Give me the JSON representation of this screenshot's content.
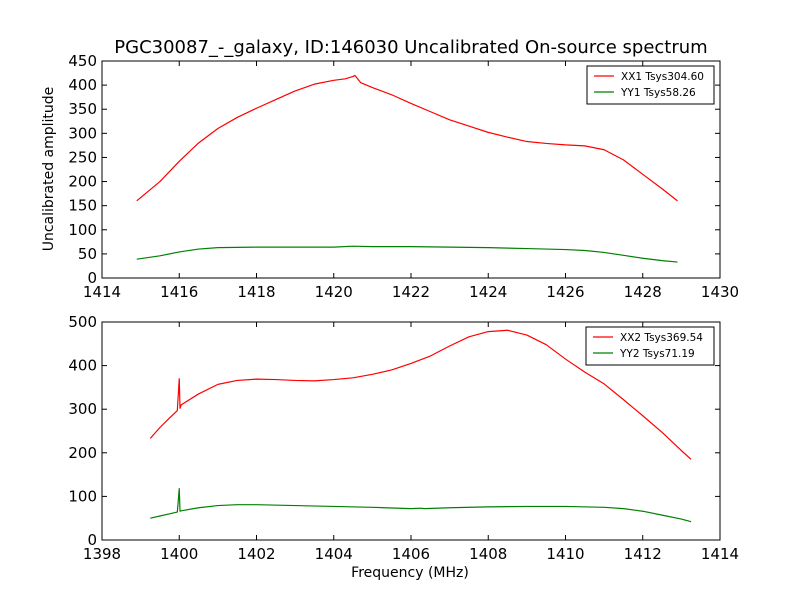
{
  "title": "PGC30087_-_galaxy, ID:146030 Uncalibrated On-source spectrum",
  "shared_ylabel": "Uncalibrated amplitude",
  "shared_xlabel": "Frequency (MHz)",
  "colors": {
    "red": "#ff0000",
    "green": "#008000",
    "axes": "#000000",
    "background": "#ffffff"
  },
  "chart_data": [
    {
      "type": "line",
      "panel": "top",
      "xlim": [
        1414,
        1430
      ],
      "ylim": [
        0,
        450
      ],
      "xticks": [
        1414,
        1416,
        1418,
        1420,
        1422,
        1424,
        1426,
        1428,
        1430
      ],
      "yticks": [
        0,
        50,
        100,
        150,
        200,
        250,
        300,
        350,
        400,
        450
      ],
      "xlabel": "",
      "ylabel": "Uncalibrated amplitude",
      "legend_position": "top-right",
      "series": [
        {
          "name": "XX1 Tsys304.60",
          "color": "#ff0000",
          "x": [
            1414.9,
            1415.5,
            1416.0,
            1416.5,
            1417.0,
            1417.5,
            1418.0,
            1418.5,
            1419.0,
            1419.5,
            1420.0,
            1420.3,
            1420.5,
            1420.55,
            1420.7,
            1421.0,
            1421.5,
            1422.0,
            1422.5,
            1423.0,
            1423.5,
            1424.0,
            1424.5,
            1425.0,
            1425.5,
            1426.0,
            1426.5,
            1427.0,
            1427.5,
            1428.0,
            1428.5,
            1428.9
          ],
          "y": [
            160,
            200,
            242,
            280,
            310,
            333,
            352,
            370,
            388,
            402,
            410,
            413,
            418,
            420,
            405,
            395,
            380,
            362,
            345,
            328,
            315,
            302,
            292,
            283,
            279,
            276,
            274,
            266,
            245,
            215,
            185,
            160
          ]
        },
        {
          "name": "YY1 Tsys58.26",
          "color": "#008000",
          "x": [
            1414.9,
            1415.5,
            1416.0,
            1416.5,
            1417.0,
            1418.0,
            1419.0,
            1420.0,
            1420.5,
            1421.0,
            1422.0,
            1423.0,
            1424.0,
            1425.0,
            1426.0,
            1426.5,
            1427.0,
            1427.5,
            1428.0,
            1428.5,
            1428.9
          ],
          "y": [
            39,
            46,
            54,
            60,
            63,
            64,
            64,
            64,
            66,
            65,
            65,
            64,
            63,
            61,
            59,
            57,
            53,
            47,
            41,
            36,
            33
          ]
        }
      ]
    },
    {
      "type": "line",
      "panel": "bottom",
      "xlim": [
        1398,
        1414
      ],
      "ylim": [
        0,
        500
      ],
      "xticks": [
        1398,
        1400,
        1402,
        1404,
        1406,
        1408,
        1410,
        1412,
        1414
      ],
      "yticks": [
        0,
        100,
        200,
        300,
        400,
        500
      ],
      "xlabel": "Frequency (MHz)",
      "ylabel": "",
      "legend_position": "top-right",
      "series": [
        {
          "name": "XX2 Tsys369.54",
          "color": "#ff0000",
          "x": [
            1399.25,
            1399.5,
            1399.75,
            1399.95,
            1400.0,
            1400.02,
            1400.05,
            1400.5,
            1401.0,
            1401.5,
            1402.0,
            1402.5,
            1403.0,
            1403.5,
            1404.0,
            1404.5,
            1405.0,
            1405.5,
            1406.0,
            1406.5,
            1407.0,
            1407.5,
            1408.0,
            1408.5,
            1409.0,
            1409.5,
            1410.0,
            1410.5,
            1411.0,
            1411.5,
            1412.0,
            1412.5,
            1413.0,
            1413.25
          ],
          "y": [
            233,
            258,
            280,
            297,
            370,
            302,
            310,
            335,
            357,
            366,
            369,
            368,
            366,
            365,
            368,
            372,
            380,
            390,
            405,
            422,
            445,
            466,
            478,
            481,
            470,
            448,
            415,
            385,
            358,
            322,
            285,
            247,
            205,
            185
          ]
        },
        {
          "name": "YY2 Tsys71.19",
          "color": "#008000",
          "x": [
            1399.25,
            1399.5,
            1399.75,
            1399.95,
            1400.0,
            1400.02,
            1400.05,
            1400.5,
            1401.0,
            1401.5,
            1402.0,
            1403.0,
            1404.0,
            1405.0,
            1406.0,
            1406.25,
            1406.35,
            1407.0,
            1408.0,
            1409.0,
            1410.0,
            1411.0,
            1411.5,
            1412.0,
            1412.5,
            1413.0,
            1413.25
          ],
          "y": [
            50,
            55,
            60,
            64,
            118,
            66,
            67,
            74,
            79,
            81,
            81,
            79,
            77,
            75,
            72,
            73,
            72,
            74,
            76,
            77,
            77,
            75,
            72,
            66,
            57,
            48,
            42
          ]
        }
      ]
    }
  ]
}
